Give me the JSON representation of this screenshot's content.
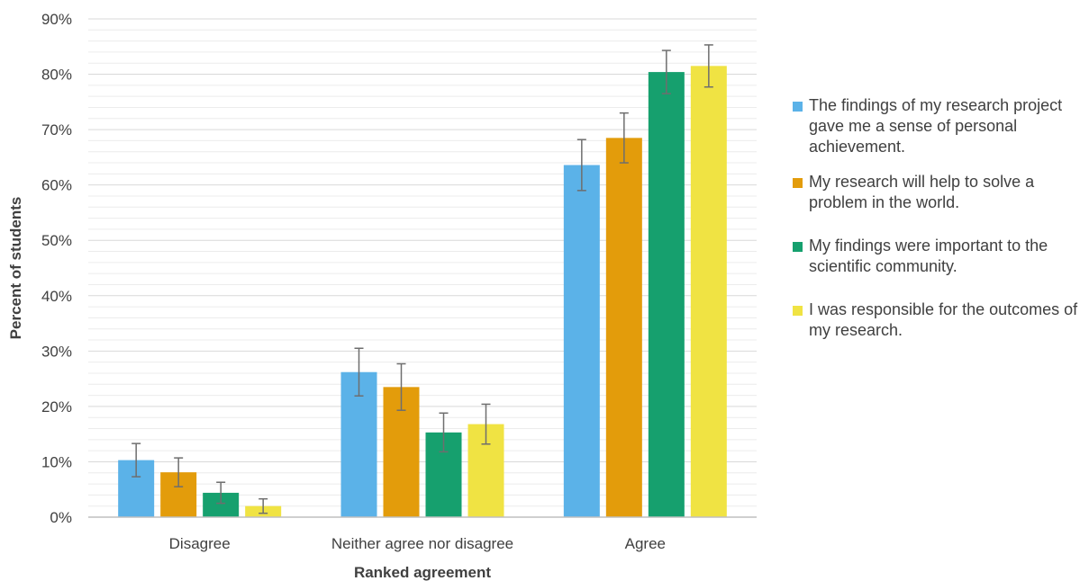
{
  "chart_data": {
    "type": "bar",
    "title": "",
    "xlabel": "Ranked agreement",
    "ylabel": "Percent of students",
    "categories": [
      "Disagree",
      "Neither agree nor disagree",
      "Agree"
    ],
    "ylim": [
      0,
      90
    ],
    "ytick_step": 10,
    "ytick_suffix": "%",
    "grid": true,
    "legend_position": "right",
    "series": [
      {
        "name": "The findings of my research project gave me a sense of personal achievement.",
        "color": "#5bb2e8",
        "values": [
          10.3,
          26.2,
          63.6
        ],
        "error": [
          3.0,
          4.3,
          4.6
        ]
      },
      {
        "name": "My research will help to solve a problem in the world.",
        "color": "#e39c0b",
        "values": [
          8.1,
          23.5,
          68.5
        ],
        "error": [
          2.6,
          4.2,
          4.5
        ]
      },
      {
        "name": "My findings were important to the scientific community.",
        "color": "#16a06e",
        "values": [
          4.4,
          15.3,
          80.4
        ],
        "error": [
          1.9,
          3.5,
          3.9
        ]
      },
      {
        "name": "I was responsible for the outcomes of my research.",
        "color": "#f0e343",
        "values": [
          2.0,
          16.8,
          81.5
        ],
        "error": [
          1.3,
          3.6,
          3.8
        ]
      }
    ]
  }
}
